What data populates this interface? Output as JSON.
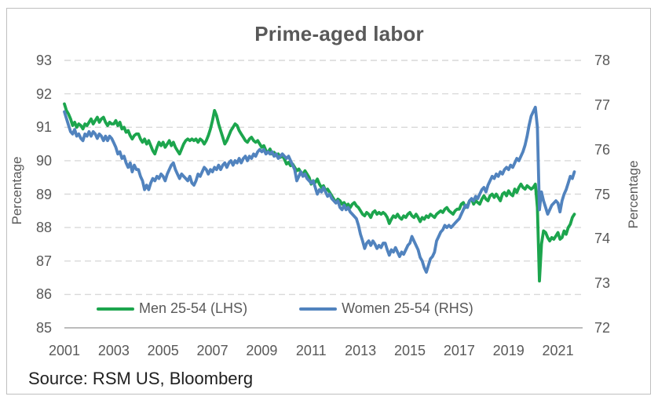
{
  "chart_data": {
    "type": "line",
    "title": "Prime-aged labor",
    "ylabel_left": "Percentage",
    "ylabel_right": "Percentage",
    "source": "Source: RSM US, Bloomberg",
    "grid": "horizontal-dashed",
    "legend_position": "bottom-inside",
    "x_start_year": 2001,
    "x_step_months": 1,
    "xlim": [
      2001,
      2022
    ],
    "x_tick_years": [
      2001,
      2003,
      2005,
      2007,
      2009,
      2011,
      2013,
      2015,
      2017,
      2019,
      2021
    ],
    "ylim_left": [
      85,
      93
    ],
    "yticks_left": [
      85,
      86,
      87,
      88,
      89,
      90,
      91,
      92,
      93
    ],
    "ylim_right": [
      72,
      78
    ],
    "yticks_right": [
      72,
      73,
      74,
      75,
      76,
      77,
      78
    ],
    "series": [
      {
        "name": "Men 25-54 (LHS)",
        "axis": "left",
        "color": "#1CA54D",
        "values": [
          91.7,
          91.5,
          91.4,
          91.25,
          91.05,
          91.15,
          91.0,
          91.1,
          91.05,
          90.95,
          91.1,
          91.05,
          91.15,
          91.25,
          91.1,
          91.2,
          91.3,
          91.15,
          91.25,
          91.3,
          91.15,
          91.05,
          91.15,
          91.1,
          91.1,
          91.2,
          91.05,
          91.15,
          90.95,
          91.0,
          90.85,
          90.9,
          90.75,
          90.65,
          90.75,
          90.8,
          90.8,
          90.65,
          90.55,
          90.65,
          90.5,
          90.6,
          90.45,
          90.3,
          90.2,
          90.4,
          90.55,
          90.45,
          90.55,
          90.4,
          90.5,
          90.6,
          90.45,
          90.55,
          90.4,
          90.3,
          90.2,
          90.35,
          90.5,
          90.6,
          90.65,
          90.6,
          90.65,
          90.6,
          90.65,
          90.55,
          90.65,
          90.6,
          90.5,
          90.6,
          90.75,
          90.95,
          91.2,
          91.5,
          91.35,
          91.1,
          90.9,
          90.7,
          90.5,
          90.6,
          90.75,
          90.9,
          91.0,
          91.1,
          91.05,
          90.9,
          90.8,
          90.7,
          90.6,
          90.55,
          90.65,
          90.7,
          90.6,
          90.55,
          90.6,
          90.5,
          90.4,
          90.45,
          90.3,
          90.25,
          90.35,
          90.2,
          90.25,
          90.15,
          90.2,
          90.1,
          90.15,
          90.05,
          89.9,
          89.95,
          89.85,
          89.9,
          89.8,
          89.7,
          89.75,
          89.65,
          89.6,
          89.7,
          89.6,
          89.5,
          89.3,
          89.4,
          89.35,
          89.45,
          89.3,
          89.2,
          89.25,
          89.1,
          89.15,
          89.05,
          88.95,
          88.85,
          88.75,
          88.85,
          88.8,
          88.7,
          88.75,
          88.65,
          88.7,
          88.6,
          88.7,
          88.75,
          88.65,
          88.6,
          88.5,
          88.4,
          88.35,
          88.45,
          88.4,
          88.3,
          88.45,
          88.5,
          88.4,
          88.45,
          88.4,
          88.45,
          88.4,
          88.3,
          88.12,
          88.25,
          88.35,
          88.3,
          88.4,
          88.3,
          88.25,
          88.35,
          88.3,
          88.4,
          88.45,
          88.35,
          88.3,
          88.4,
          88.3,
          88.18,
          88.3,
          88.25,
          88.35,
          88.3,
          88.4,
          88.35,
          88.3,
          88.4,
          88.45,
          88.5,
          88.45,
          88.55,
          88.6,
          88.5,
          88.45,
          88.4,
          88.5,
          88.55,
          88.55,
          88.7,
          88.75,
          88.6,
          88.65,
          88.8,
          88.85,
          88.7,
          88.8,
          88.75,
          88.7,
          88.85,
          88.95,
          88.85,
          88.8,
          88.95,
          89.0,
          88.9,
          89.0,
          88.9,
          88.8,
          89.0,
          89.05,
          88.95,
          89.1,
          89.0,
          88.95,
          89.15,
          89.05,
          89.2,
          89.3,
          89.2,
          89.15,
          89.25,
          89.2,
          89.15,
          89.2,
          89.3,
          88.6,
          86.4,
          87.5,
          87.9,
          87.85,
          87.7,
          87.6,
          87.7,
          87.65,
          87.75,
          87.85,
          87.65,
          87.7,
          87.9,
          87.8,
          88.0,
          88.1,
          88.3,
          88.4
        ]
      },
      {
        "name": "Women 25-54 (RHS)",
        "axis": "right",
        "color": "#5183BE",
        "values": [
          76.85,
          76.7,
          76.55,
          76.4,
          76.35,
          76.45,
          76.3,
          76.35,
          76.25,
          76.2,
          76.35,
          76.3,
          76.4,
          76.3,
          76.4,
          76.35,
          76.25,
          76.35,
          76.3,
          76.2,
          76.3,
          76.2,
          76.3,
          76.25,
          76.15,
          76.05,
          75.9,
          75.95,
          75.8,
          75.85,
          75.7,
          75.6,
          75.7,
          75.5,
          75.65,
          75.55,
          75.55,
          75.4,
          75.3,
          75.1,
          75.2,
          75.1,
          75.25,
          75.35,
          75.3,
          75.4,
          75.35,
          75.45,
          75.4,
          75.3,
          75.45,
          75.55,
          75.65,
          75.7,
          75.55,
          75.45,
          75.35,
          75.45,
          75.4,
          75.35,
          75.3,
          75.4,
          75.25,
          75.2,
          75.3,
          75.45,
          75.4,
          75.5,
          75.6,
          75.55,
          75.45,
          75.55,
          75.5,
          75.6,
          75.55,
          75.65,
          75.55,
          75.65,
          75.7,
          75.6,
          75.7,
          75.75,
          75.65,
          75.75,
          75.7,
          75.8,
          75.7,
          75.8,
          75.85,
          75.75,
          75.85,
          75.8,
          75.9,
          75.85,
          75.95,
          76.0,
          75.95,
          76.0,
          75.9,
          75.95,
          75.9,
          75.95,
          75.85,
          75.9,
          75.8,
          75.85,
          75.9,
          75.85,
          75.8,
          75.85,
          75.75,
          75.65,
          75.55,
          75.3,
          75.4,
          75.5,
          75.4,
          75.45,
          75.35,
          75.3,
          75.25,
          75.3,
          75.15,
          75.0,
          75.1,
          75.05,
          75.15,
          75.05,
          74.95,
          75.0,
          74.9,
          74.85,
          74.8,
          74.85,
          74.7,
          74.65,
          74.75,
          74.65,
          74.7,
          74.6,
          74.55,
          74.5,
          74.45,
          74.3,
          74.1,
          73.95,
          73.78,
          73.9,
          73.95,
          73.85,
          73.95,
          73.88,
          73.78,
          73.85,
          73.8,
          73.9,
          73.9,
          73.75,
          73.63,
          73.75,
          73.7,
          73.8,
          73.7,
          73.6,
          73.7,
          73.65,
          73.75,
          73.85,
          73.9,
          74.05,
          73.95,
          73.85,
          73.75,
          73.58,
          73.5,
          73.35,
          73.25,
          73.4,
          73.55,
          73.6,
          73.7,
          73.95,
          74.05,
          74.15,
          74.2,
          74.3,
          74.25,
          74.3,
          74.25,
          74.3,
          74.35,
          74.4,
          74.45,
          74.55,
          74.65,
          74.75,
          74.7,
          74.85,
          74.9,
          74.85,
          74.95,
          74.9,
          75.0,
          75.1,
          75.15,
          75.05,
          75.2,
          75.3,
          75.4,
          75.35,
          75.45,
          75.4,
          75.5,
          75.45,
          75.55,
          75.6,
          75.55,
          75.65,
          75.6,
          75.7,
          75.8,
          75.75,
          75.85,
          75.95,
          76.1,
          76.3,
          76.55,
          76.75,
          76.85,
          76.95,
          76.5,
          74.65,
          75.05,
          74.85,
          74.7,
          74.55,
          74.65,
          74.75,
          74.8,
          74.85,
          74.8,
          74.6,
          74.85,
          75.0,
          75.1,
          75.25,
          75.4,
          75.35,
          75.5
        ]
      }
    ],
    "colors": {
      "title_text": "#595959",
      "tick_text": "#595959",
      "gridline": "#d9d9d9",
      "axis_line": "#a6a6a6",
      "source_text": "#1f1f1f",
      "frame_border": "#bfbfbf"
    }
  }
}
